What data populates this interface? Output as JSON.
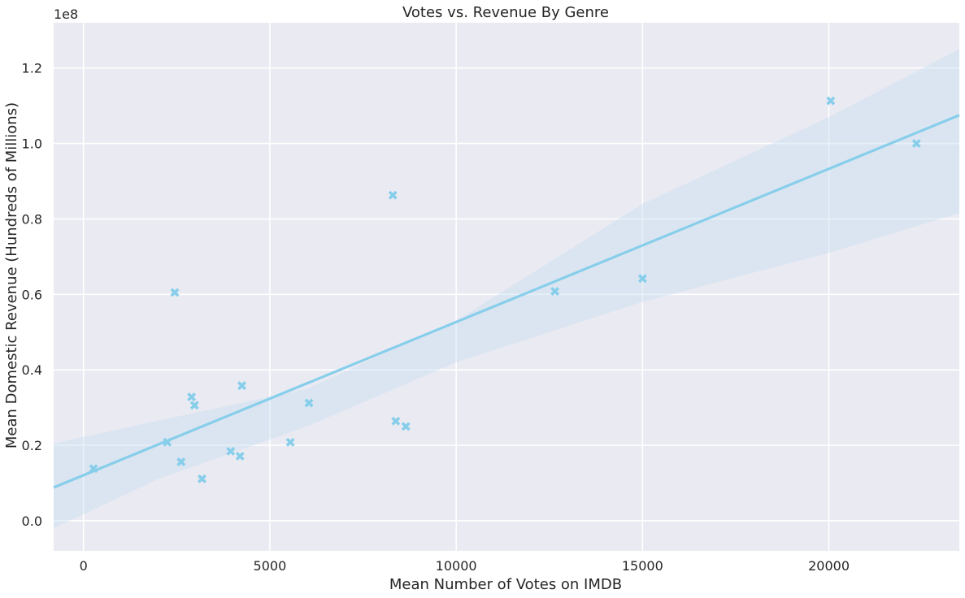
{
  "chart_data": {
    "type": "scatter",
    "title": "Votes vs. Revenue By Genre",
    "xlabel": "Mean Number of Votes on IMDB",
    "ylabel": "Mean Domestic Revenue (Hundreds of Millions)",
    "y_offset_text": "1e8",
    "xlim": [
      -800,
      23500
    ],
    "ylim": [
      -8000000,
      132000000
    ],
    "x_ticks": [
      0,
      5000,
      10000,
      15000,
      20000
    ],
    "x_tick_labels": [
      "0",
      "5000",
      "10000",
      "15000",
      "20000"
    ],
    "y_ticks": [
      0,
      20000000,
      40000000,
      60000000,
      80000000,
      100000000,
      120000000
    ],
    "y_tick_labels": [
      "0.0",
      "0.2",
      "0.4",
      "0.6",
      "0.8",
      "1.0",
      "1.2"
    ],
    "grid": true,
    "marker": "x",
    "color": "#87ceeb",
    "band_color": "#c9dff0",
    "background_color": "#eaeaf2",
    "grid_color": "#ffffff",
    "points": [
      {
        "x": 270,
        "y": 13800000
      },
      {
        "x": 2250,
        "y": 20800000
      },
      {
        "x": 2450,
        "y": 60500000
      },
      {
        "x": 2620,
        "y": 15600000
      },
      {
        "x": 2900,
        "y": 32800000
      },
      {
        "x": 2980,
        "y": 30600000
      },
      {
        "x": 3180,
        "y": 11100000
      },
      {
        "x": 3950,
        "y": 18400000
      },
      {
        "x": 4200,
        "y": 17100000
      },
      {
        "x": 4250,
        "y": 35800000
      },
      {
        "x": 5550,
        "y": 20800000
      },
      {
        "x": 6050,
        "y": 31200000
      },
      {
        "x": 8300,
        "y": 86300000
      },
      {
        "x": 8380,
        "y": 26400000
      },
      {
        "x": 8650,
        "y": 25000000
      },
      {
        "x": 12650,
        "y": 60800000
      },
      {
        "x": 15000,
        "y": 64200000
      },
      {
        "x": 20050,
        "y": 111300000
      },
      {
        "x": 22350,
        "y": 100000000
      }
    ],
    "regression_line": [
      {
        "x": -800,
        "y": 8800000
      },
      {
        "x": 23500,
        "y": 107500000
      }
    ],
    "confidence_band": {
      "x": [
        -800,
        2000,
        6000,
        10000,
        15000,
        20000,
        23500
      ],
      "upper": [
        20500000,
        26500000,
        35000000,
        53000000,
        84000000,
        107000000,
        125000000
      ],
      "lower": [
        -2000000,
        11000000,
        25000000,
        42000000,
        58000000,
        71000000,
        81500000
      ]
    }
  }
}
